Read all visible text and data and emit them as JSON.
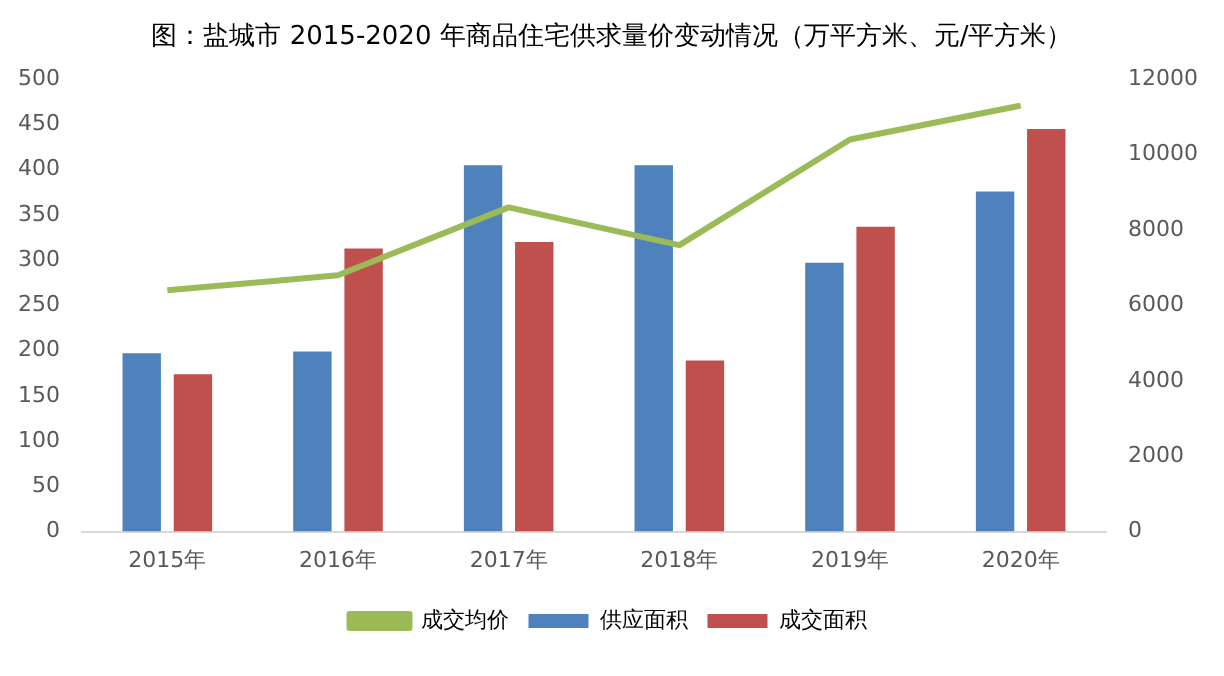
{
  "chart_data": {
    "type": "bar",
    "title": "图：盐城市 2015-2020 年商品住宅供求量价变动情况（万平方米、元/平方米）",
    "categories": [
      "2015年",
      "2016年",
      "2017年",
      "2018年",
      "2019年",
      "2020年"
    ],
    "series": [
      {
        "name": "供应面积",
        "color": "#4f81bd",
        "values": [
          197,
          199,
          405,
          405,
          297,
          376
        ]
      },
      {
        "name": "成交面积",
        "color": "#c0504d",
        "values": [
          174,
          313,
          320,
          189,
          337,
          445
        ]
      },
      {
        "name": "成交均价",
        "color": "#9bbb59",
        "type": "line",
        "axis": "y2",
        "values": [
          6400,
          6800,
          8600,
          7600,
          10400,
          11300
        ]
      }
    ],
    "ylim": [
      0,
      500
    ],
    "yticks": [
      0,
      50,
      100,
      150,
      200,
      250,
      300,
      350,
      400,
      450,
      500
    ],
    "y2lim": [
      0,
      12000
    ],
    "y2ticks": [
      0,
      2000,
      4000,
      6000,
      8000,
      10000,
      12000
    ],
    "grid": false,
    "legend": "bottom",
    "marker": "none"
  }
}
